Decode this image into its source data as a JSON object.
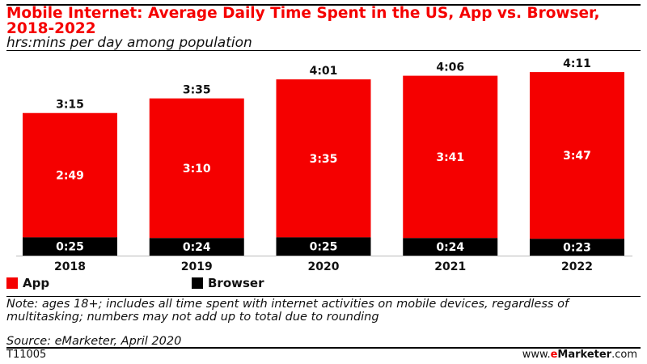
{
  "title": "Mobile Internet: Average Daily Time Spent in the US, App vs. Browser, 2018-2022",
  "subtitle": "hrs:mins per day among population",
  "chart_data": {
    "type": "bar",
    "stacked": true,
    "categories": [
      "2018",
      "2019",
      "2020",
      "2021",
      "2022"
    ],
    "series": [
      {
        "name": "App",
        "color": "#f50000",
        "values": [
          "2:49",
          "3:10",
          "3:35",
          "3:41",
          "3:47"
        ]
      },
      {
        "name": "Browser",
        "color": "#000000",
        "values": [
          "0:25",
          "0:24",
          "0:25",
          "0:24",
          "0:23"
        ]
      }
    ],
    "totals": [
      "3:15",
      "3:35",
      "4:01",
      "4:06",
      "4:11"
    ],
    "units": "hrs:mins",
    "legend_position": "bottom-left",
    "grid": false
  },
  "legend": {
    "app": "App",
    "browser": "Browser"
  },
  "note": "Note: ages 18+; includes all time spent with internet activities on mobile devices, regardless of multitasking; numbers may not add up to total due to rounding",
  "source": "Source: eMarketer, April 2020",
  "footer": {
    "code": "T11005",
    "site_prefix": "www.",
    "site_e": "e",
    "site_brand": "Marketer",
    "site_suffix": ".com"
  }
}
